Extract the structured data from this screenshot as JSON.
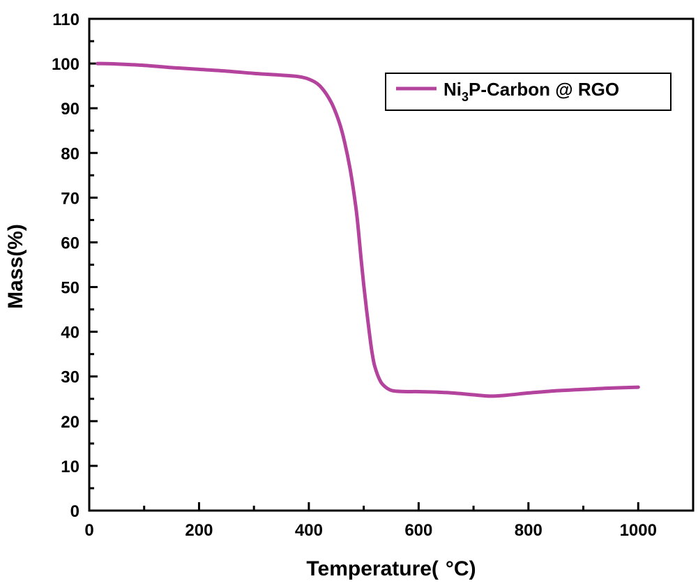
{
  "chart_data": {
    "type": "line",
    "title": "",
    "xlabel": "Temperature(",
    "xlabel_unit": "°C)",
    "ylabel": "Mass(%)",
    "xlim": [
      0,
      1100
    ],
    "ylim": [
      0,
      110
    ],
    "x_ticks": [
      0,
      200,
      400,
      600,
      800,
      1000
    ],
    "x_minor_ticks": [
      100,
      300,
      500,
      700,
      900
    ],
    "y_ticks": [
      0,
      10,
      20,
      30,
      40,
      50,
      60,
      70,
      80,
      90,
      100,
      110
    ],
    "grid": false,
    "legend_position": "top-right",
    "series": [
      {
        "name_main": "Ni",
        "name_sub": "3",
        "name_tail": "P-Carbon @ RGO",
        "color": "#B4439E",
        "x": [
          15,
          50,
          100,
          150,
          200,
          250,
          300,
          350,
          380,
          400,
          420,
          440,
          455,
          465,
          475,
          485,
          490,
          495,
          500,
          505,
          510,
          515,
          520,
          530,
          540,
          550,
          560,
          580,
          600,
          650,
          700,
          730,
          760,
          800,
          850,
          900,
          950,
          1000
        ],
        "y": [
          100,
          99.9,
          99.6,
          99.1,
          98.7,
          98.3,
          97.8,
          97.4,
          97.1,
          96.5,
          95.0,
          91.5,
          87.0,
          82.5,
          76.5,
          68.5,
          63.0,
          56.5,
          50.5,
          45.0,
          40.0,
          35.5,
          32.3,
          29.0,
          27.6,
          26.9,
          26.7,
          26.6,
          26.6,
          26.4,
          25.9,
          25.6,
          25.8,
          26.3,
          26.8,
          27.1,
          27.4,
          27.6
        ]
      }
    ]
  }
}
